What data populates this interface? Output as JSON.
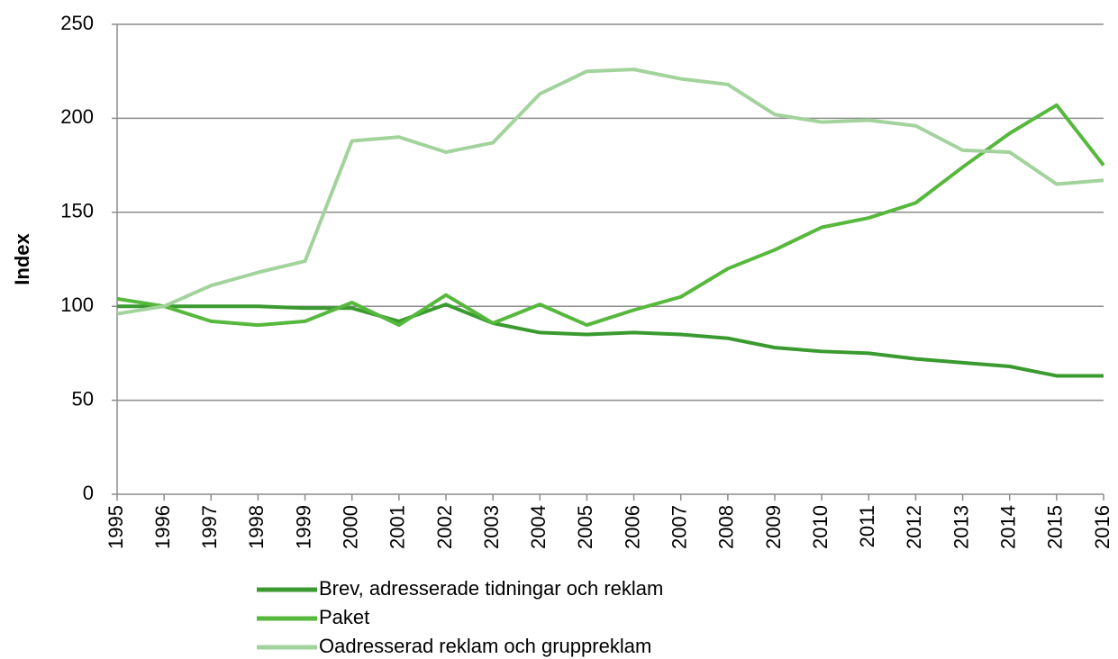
{
  "chart_data": {
    "type": "line",
    "y_label": "Index",
    "categories": [
      "1995",
      "1996",
      "1997",
      "1998",
      "1999",
      "2000",
      "2001",
      "2002",
      "2003",
      "2004",
      "2005",
      "2006",
      "2007",
      "2008",
      "2009",
      "2010",
      "2011",
      "2012",
      "2013",
      "2014",
      "2015",
      "2016"
    ],
    "series": [
      {
        "name": "Brev, adresserade tidningar och reklam",
        "color": "#3a9a30",
        "values": [
          100,
          100,
          100,
          100,
          99,
          99,
          92,
          101,
          91,
          86,
          85,
          86,
          85,
          83,
          78,
          76,
          75,
          72,
          70,
          68,
          63,
          63
        ]
      },
      {
        "name": "Paket",
        "color": "#56b83c",
        "values": [
          104,
          100,
          92,
          90,
          92,
          102,
          90,
          106,
          91,
          101,
          90,
          98,
          105,
          120,
          130,
          142,
          147,
          155,
          174,
          192,
          207,
          175
        ]
      },
      {
        "name": "Oadresserad reklam och gruppreklam",
        "color": "#a3d39c",
        "values": [
          96,
          100,
          111,
          118,
          124,
          188,
          190,
          182,
          187,
          213,
          225,
          226,
          221,
          218,
          202,
          198,
          199,
          196,
          183,
          182,
          165,
          167
        ]
      }
    ],
    "ylim": [
      0,
      250
    ],
    "yticks": [
      0,
      50,
      100,
      150,
      200,
      250
    ],
    "grid": true
  }
}
